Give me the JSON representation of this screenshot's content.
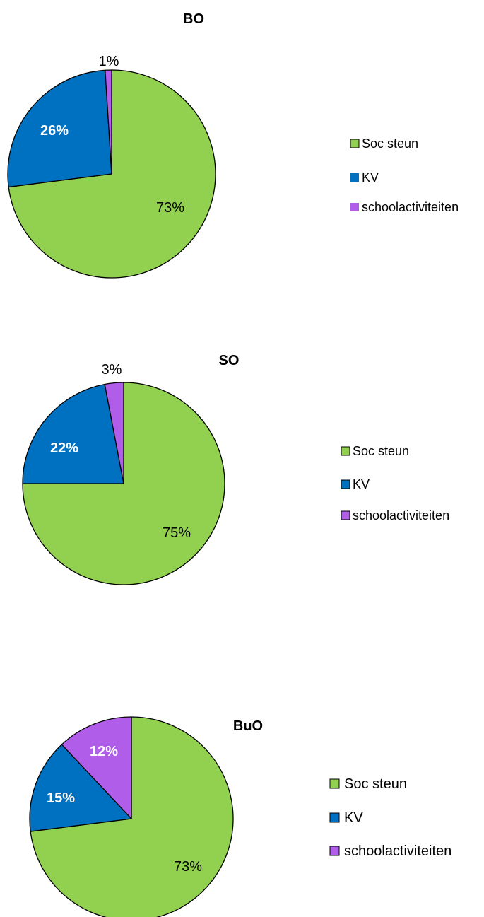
{
  "legend_colors": [
    "#92d050",
    "#0070c0",
    "#b05de9"
  ],
  "chart_data": [
    {
      "type": "pie",
      "title": "BO",
      "categories": [
        "Soc steun",
        "KV",
        "schoolactiviteiten"
      ],
      "values": [
        73,
        26,
        1
      ],
      "data_labels": [
        "73%",
        "26%",
        "1%"
      ],
      "legend": "right"
    },
    {
      "type": "pie",
      "title": "SO",
      "categories": [
        "Soc steun",
        "KV",
        "schoolactiviteiten"
      ],
      "values": [
        75,
        22,
        3
      ],
      "data_labels": [
        "75%",
        "22%",
        "3%"
      ],
      "legend": "right"
    },
    {
      "type": "pie",
      "title": "BuO",
      "categories": [
        "Soc steun",
        "KV",
        "schoolactiviteiten"
      ],
      "values": [
        73,
        15,
        12
      ],
      "data_labels": [
        "73%",
        "15%",
        "12%"
      ],
      "legend": "right"
    }
  ]
}
